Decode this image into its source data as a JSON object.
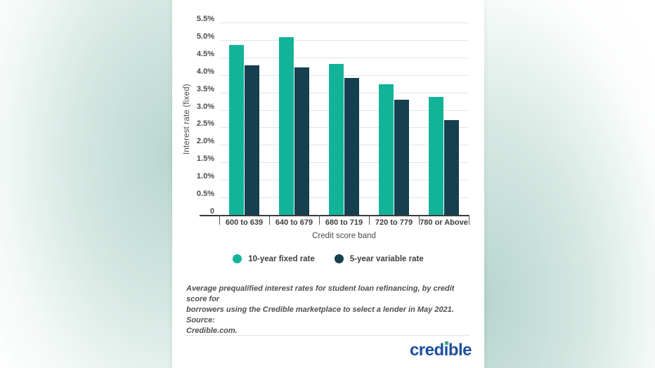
{
  "chart_data": {
    "type": "bar",
    "categories": [
      "600 to 639",
      "640 to 679",
      "680 to 719",
      "720 to 779",
      "780 or Above"
    ],
    "series": [
      {
        "name": "10-year fixed rate",
        "color": "#13b39a",
        "values": [
          4.88,
          5.1,
          4.33,
          3.75,
          3.4
        ]
      },
      {
        "name": "5-year variable rate",
        "color": "#16404f",
        "values": [
          4.3,
          4.24,
          3.94,
          3.31,
          2.74
        ]
      }
    ],
    "xlabel": "Credit score band",
    "ylabel": "Interest rate (fixed)",
    "ylim": [
      0,
      5.5
    ],
    "ytick_step": 0.5,
    "yticks": [
      {
        "v": 0.0,
        "label": "0"
      },
      {
        "v": 0.5,
        "label": "0.5%"
      },
      {
        "v": 1.0,
        "label": "1.0%"
      },
      {
        "v": 1.5,
        "label": "1.5%"
      },
      {
        "v": 2.0,
        "label": "2.0%"
      },
      {
        "v": 2.5,
        "label": "2.5%"
      },
      {
        "v": 3.0,
        "label": "3.0%"
      },
      {
        "v": 3.5,
        "label": "3.5%"
      },
      {
        "v": 4.0,
        "label": "4.0%"
      },
      {
        "v": 4.5,
        "label": "4.5%"
      },
      {
        "v": 5.0,
        "label": "5.0%"
      },
      {
        "v": 5.5,
        "label": "5.5%"
      }
    ],
    "grid": true,
    "legend_position": "bottom-center"
  },
  "caption": {
    "lines": [
      "Average prequalified interest rates for student loan refinancing, by credit score for",
      "borrowers using the Credible marketplace to select a lender in May 2021. Source:",
      "Credible.com."
    ]
  },
  "logo": {
    "part1": "cred",
    "part2": "ı",
    "part3": "ble",
    "full_text": "credible"
  },
  "colors": {
    "series_teal": "#13b39a",
    "series_dark_teal": "#16404f",
    "background_tint": "#b9d6cf",
    "logo_blue": "#1e4f9c",
    "logo_dot_green": "#3ea981"
  }
}
